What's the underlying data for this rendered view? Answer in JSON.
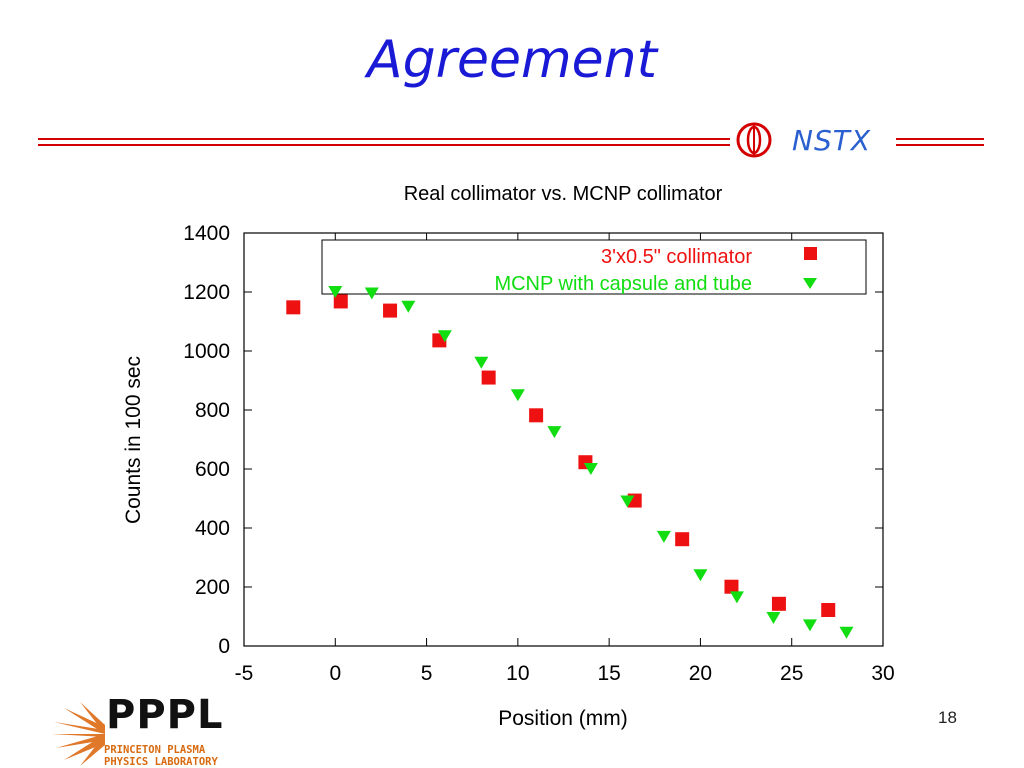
{
  "slide": {
    "title": "Agreement",
    "page_number": "18"
  },
  "logos": {
    "nstx": "NSTX",
    "pppl": "PPPL",
    "pppl_line1": "PRINCETON PLASMA",
    "pppl_line2": "PHYSICS LABORATORY"
  },
  "colors": {
    "title": "#1a1ad6",
    "rule": "#d40000",
    "series1": "#ee1111",
    "series2": "#11dd11"
  },
  "chart_data": {
    "type": "scatter",
    "title": "Real collimator vs. MCNP collimator",
    "xlabel": "Position (mm)",
    "ylabel": "Counts in 100 sec",
    "xlim": [
      -5,
      30
    ],
    "ylim": [
      0,
      1400
    ],
    "xticks": [
      "-5",
      "0",
      "5",
      "10",
      "15",
      "20",
      "25",
      "30"
    ],
    "yticks": [
      "0",
      "200",
      "400",
      "600",
      "800",
      "1000",
      "1200",
      "1400"
    ],
    "legend_position": "top",
    "series": [
      {
        "name": "3'x0.5\" collimator",
        "marker": "square",
        "color": "#ee1111",
        "points": [
          [
            -2.3,
            1148
          ],
          [
            0.3,
            1168
          ],
          [
            3.0,
            1137
          ],
          [
            5.7,
            1036
          ],
          [
            8.4,
            910
          ],
          [
            11.0,
            782
          ],
          [
            13.7,
            623
          ],
          [
            16.4,
            493
          ],
          [
            19.0,
            362
          ],
          [
            21.7,
            201
          ],
          [
            24.3,
            143
          ],
          [
            27.0,
            122
          ]
        ]
      },
      {
        "name": "MCNP with capsule and tube",
        "marker": "triangle-down",
        "color": "#11dd11",
        "points": [
          [
            0,
            1200
          ],
          [
            2,
            1195
          ],
          [
            4,
            1150
          ],
          [
            6,
            1050
          ],
          [
            8,
            960
          ],
          [
            10,
            850
          ],
          [
            12,
            725
          ],
          [
            14,
            600
          ],
          [
            16,
            490
          ],
          [
            18,
            370
          ],
          [
            20,
            240
          ],
          [
            22,
            165
          ],
          [
            24,
            95
          ],
          [
            26,
            70
          ],
          [
            28,
            45
          ]
        ]
      }
    ]
  }
}
